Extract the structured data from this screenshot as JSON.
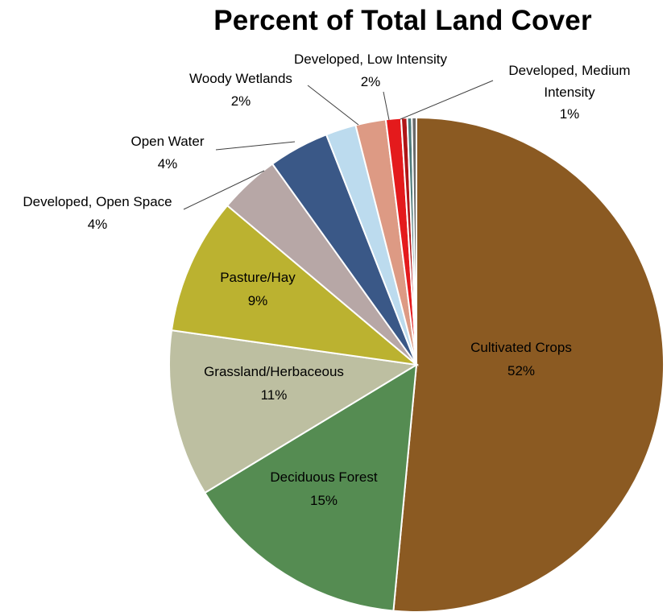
{
  "chart_data": {
    "type": "pie",
    "title": "Percent of Total Land Cover",
    "slices": [
      {
        "label": "Cultivated Crops",
        "value": 52,
        "value_label": "52%",
        "color": "#8B5A22"
      },
      {
        "label": "Deciduous Forest",
        "value": 15,
        "value_label": "15%",
        "color": "#558C52"
      },
      {
        "label": "Grassland/Herbaceous",
        "value": 11,
        "value_label": "11%",
        "color": "#BDBFA1"
      },
      {
        "label": "Pasture/Hay",
        "value": 9,
        "value_label": "9%",
        "color": "#BBB230"
      },
      {
        "label": "Developed, Open Space",
        "value": 4,
        "value_label": "4%",
        "color": "#B7A7A6"
      },
      {
        "label": "Open Water",
        "value": 4,
        "value_label": "4%",
        "color": "#3A5887"
      },
      {
        "label": "Woody Wetlands",
        "value": 2,
        "value_label": "2%",
        "color": "#BCDBEE"
      },
      {
        "label": "Developed, Low Intensity",
        "value": 2,
        "value_label": "2%",
        "color": "#DD9A84"
      },
      {
        "label": "Developed, Medium Intensity",
        "value": 1,
        "value_label": "1%",
        "color": "#E41A1C"
      },
      {
        "value": 0.4,
        "color": "#B01517"
      },
      {
        "value": 0.3,
        "color": "#4D7A7A"
      },
      {
        "value": 0.3,
        "color": "#6A6A6A"
      }
    ],
    "start_angle_deg": 0,
    "direction": "clockwise"
  }
}
